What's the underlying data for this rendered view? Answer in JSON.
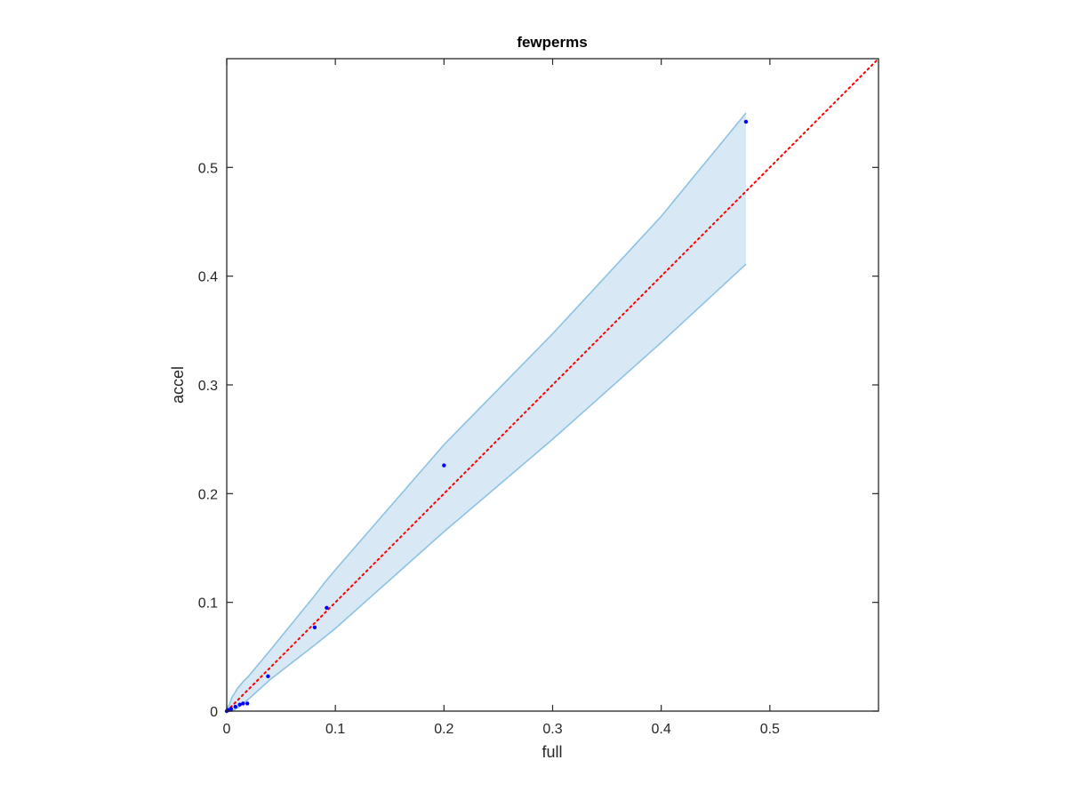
{
  "chart_data": {
    "type": "scatter",
    "title": "fewperms",
    "xlabel": "full",
    "ylabel": "accel",
    "xlim": [
      0,
      0.6
    ],
    "ylim": [
      0,
      0.6
    ],
    "xticks": [
      0,
      0.1,
      0.2,
      0.3,
      0.4,
      0.5
    ],
    "xtick_labels": [
      "0",
      "0.1",
      "0.2",
      "0.3",
      "0.4",
      "0.5"
    ],
    "yticks": [
      0,
      0.1,
      0.2,
      0.3,
      0.4,
      0.5
    ],
    "ytick_labels": [
      "0",
      "0.1",
      "0.2",
      "0.3",
      "0.4",
      "0.5"
    ],
    "grid": false,
    "points": {
      "x": [
        0.0,
        0.001,
        0.002,
        0.004,
        0.008,
        0.012,
        0.015,
        0.019,
        0.038,
        0.081,
        0.092,
        0.2,
        0.478
      ],
      "y": [
        0.0,
        0.001,
        0.001,
        0.002,
        0.004,
        0.006,
        0.007,
        0.007,
        0.032,
        0.077,
        0.095,
        0.226,
        0.542
      ],
      "color": "#0000ff"
    },
    "reference_line": {
      "x": [
        0,
        0.6
      ],
      "y": [
        0,
        0.6
      ],
      "color": "#ff0000",
      "style": "dotted"
    },
    "confidence_band": {
      "x": [
        0,
        0.005,
        0.01,
        0.015,
        0.02,
        0.04,
        0.08,
        0.09,
        0.1,
        0.2,
        0.3,
        0.4,
        0.478
      ],
      "upper": [
        0.0,
        0.013,
        0.021,
        0.027,
        0.032,
        0.056,
        0.105,
        0.118,
        0.13,
        0.245,
        0.347,
        0.455,
        0.55
      ],
      "lower": [
        0.0,
        0.0,
        0.003,
        0.007,
        0.011,
        0.029,
        0.06,
        0.068,
        0.076,
        0.165,
        0.25,
        0.339,
        0.411
      ],
      "fill_color": "#d8e8f4",
      "edge_color": "#8dc2e3"
    }
  }
}
